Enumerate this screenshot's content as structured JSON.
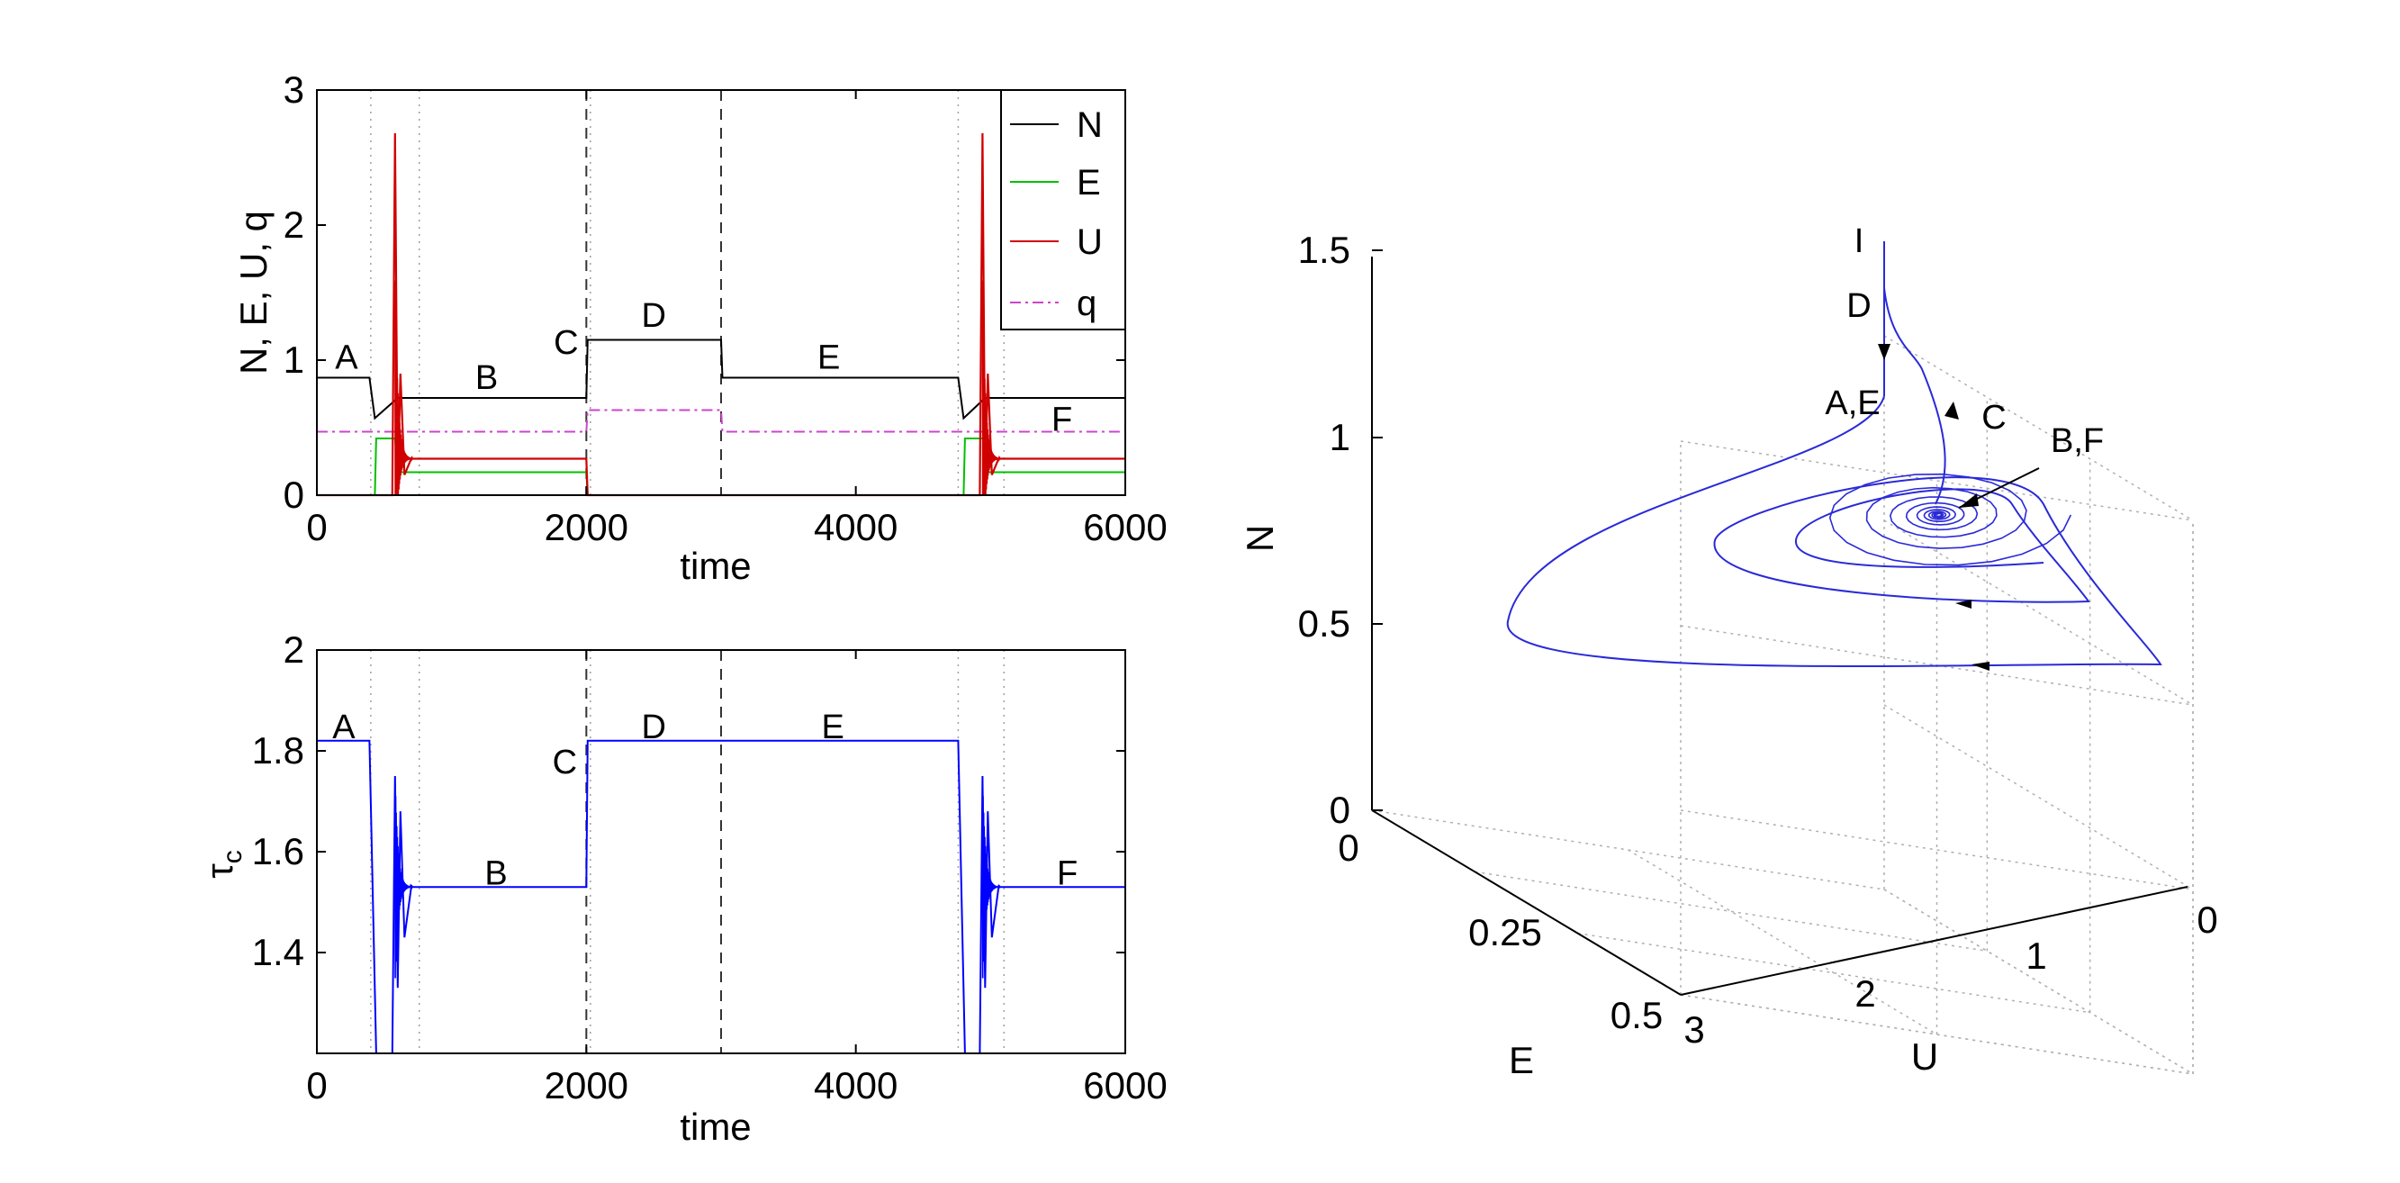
{
  "colors": {
    "N": "#000000",
    "E": "#00c000",
    "U": "#d00000",
    "q": "#cc44cc",
    "tau": "#0000ff",
    "traj": "#2a2ad8",
    "grid": "#b0b0b0"
  },
  "chart_data": [
    {
      "type": "line",
      "xlabel": "time",
      "ylabel": "N, E, U, q",
      "xlim": [
        0,
        6000
      ],
      "ylim": [
        0,
        3
      ],
      "xticks": [
        "0",
        "2000",
        "4000",
        "6000"
      ],
      "yticks": [
        "0",
        "1",
        "2",
        "3"
      ],
      "legend": {
        "placement": "top-right",
        "entries": [
          "N",
          "E",
          "U",
          "q"
        ]
      },
      "vlines_dotted": [
        400,
        760,
        2030,
        4760,
        5100
      ],
      "vlines_dashed": [
        2000,
        3000
      ],
      "annotations": [
        {
          "text": "A",
          "x": 220,
          "y": 1.03
        },
        {
          "text": "B",
          "x": 1260,
          "y": 0.88
        },
        {
          "text": "C",
          "x": 1850,
          "y": 1.14
        },
        {
          "text": "D",
          "x": 2500,
          "y": 1.34
        },
        {
          "text": "E",
          "x": 3800,
          "y": 1.03
        },
        {
          "text": "F",
          "x": 5530,
          "y": 0.57
        }
      ],
      "series": [
        {
          "name": "N",
          "x": [
            0,
            390,
            430,
            600,
            2000,
            2010,
            3000,
            3010,
            4760,
            4800,
            4960,
            6000
          ],
          "y": [
            0.87,
            0.87,
            0.57,
            0.72,
            0.72,
            1.15,
            1.15,
            0.87,
            0.87,
            0.57,
            0.72,
            0.72
          ]
        },
        {
          "name": "E",
          "x": [
            0,
            430,
            440,
            580,
            600,
            2000,
            2010,
            4800,
            4810,
            4950,
            4970,
            6000
          ],
          "y": [
            0,
            0,
            0.42,
            0.42,
            0.17,
            0.17,
            0,
            0,
            0.42,
            0.42,
            0.17,
            0.17
          ]
        },
        {
          "name": "U",
          "x": [
            0,
            560,
            580,
            600,
            620,
            650,
            700,
            2000,
            2010,
            4920,
            4940,
            4960,
            4980,
            5010,
            5060,
            6000
          ],
          "y": [
            0,
            0,
            2.68,
            0.05,
            0.9,
            0.15,
            0.27,
            0.27,
            0,
            0,
            2.68,
            0.05,
            0.9,
            0.15,
            0.27,
            0.27
          ]
        },
        {
          "name": "q",
          "x": [
            0,
            2000,
            2010,
            3000,
            3010,
            6000
          ],
          "y": [
            0.47,
            0.47,
            0.63,
            0.63,
            0.47,
            0.47
          ]
        }
      ]
    },
    {
      "type": "line",
      "xlabel": "time",
      "ylabel": "τc",
      "xlim": [
        0,
        6000
      ],
      "ylim": [
        1.2,
        2.0
      ],
      "xticks": [
        "0",
        "2000",
        "4000",
        "6000"
      ],
      "yticks": [
        "1.4",
        "1.6",
        "1.8",
        "2"
      ],
      "vlines_dotted": [
        400,
        760,
        2030,
        4760,
        5100
      ],
      "vlines_dashed": [
        2000,
        3000
      ],
      "annotations": [
        {
          "text": "A",
          "x": 200,
          "y": 1.85
        },
        {
          "text": "B",
          "x": 1330,
          "y": 1.56
        },
        {
          "text": "C",
          "x": 1840,
          "y": 1.78
        },
        {
          "text": "D",
          "x": 2500,
          "y": 1.85
        },
        {
          "text": "E",
          "x": 3830,
          "y": 1.85
        },
        {
          "text": "F",
          "x": 5570,
          "y": 1.56
        }
      ],
      "series": [
        {
          "name": "",
          "x": [
            0,
            390,
            440,
            560,
            580,
            600,
            620,
            650,
            700,
            2000,
            2010,
            4760,
            4810,
            4920,
            4940,
            4960,
            4980,
            5010,
            5060,
            6000
          ],
          "y": [
            1.82,
            1.82,
            1.2,
            1.2,
            1.75,
            1.33,
            1.68,
            1.43,
            1.53,
            1.53,
            1.82,
            1.82,
            1.2,
            1.2,
            1.75,
            1.33,
            1.68,
            1.43,
            1.53,
            1.53
          ]
        }
      ]
    },
    {
      "type": "line",
      "projection": "3d",
      "xlabel": "U",
      "ylabel": "E",
      "zlabel": "N",
      "xlim": [
        0,
        3
      ],
      "ylim": [
        0,
        0.5
      ],
      "zlim": [
        0,
        1.5
      ],
      "xticks": [
        "0",
        "1",
        "2",
        "3"
      ],
      "yticks": [
        "0",
        "0.25",
        "0.5"
      ],
      "zticks": [
        "0",
        "0.5",
        "1",
        "1.5"
      ],
      "annotations": [
        {
          "text": "I"
        },
        {
          "text": "D"
        },
        {
          "text": "A,E"
        },
        {
          "text": "C"
        },
        {
          "text": "B,F"
        }
      ],
      "series": [
        {
          "name": "",
          "description_points": "spiral trajectory from (U=0,E=0,N=1.35) descending to (0,0,0.87), converging to focus near (0.27,0.17,0.72)"
        }
      ]
    }
  ]
}
